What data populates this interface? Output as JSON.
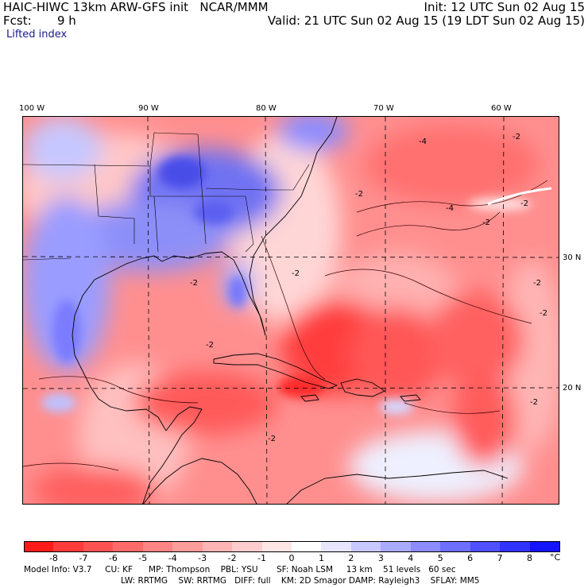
{
  "header": {
    "title_left": "HAIC-HIWC 13km ARW-GFS init   NCAR/MMM",
    "fcst_label": "Fcst:",
    "fcst_value": "9 h",
    "init": "Init: 12 UTC Sun 02 Aug 15",
    "valid": "Valid: 21 UTC Sun 02 Aug 15 (19 LDT Sun 02 Aug 15)",
    "field": "Lifted index"
  },
  "map": {
    "lon_labels": [
      "100 W",
      "90 W",
      "80 W",
      "70 W",
      "60 W"
    ],
    "lat_labels": [
      "30 N",
      "20 N"
    ],
    "contour_labels": [
      "-4",
      "-2",
      "-2",
      "-4",
      "-2",
      "-2",
      "-2",
      "-2",
      "-2",
      "-2",
      "-2",
      "-2",
      "-2"
    ]
  },
  "legend": {
    "ticks": [
      "-8",
      "-7",
      "-6",
      "-5",
      "-4",
      "-3",
      "-2",
      "-1",
      "0",
      "1",
      "2",
      "3",
      "4",
      "5",
      "6",
      "7",
      "8"
    ],
    "unit": "°C",
    "colors": [
      "#ff1a1a",
      "#ff3b3b",
      "#ff5353",
      "#ff6b6b",
      "#ff8484",
      "#ff9c9c",
      "#ffb5b5",
      "#ffcdcd",
      "#ffe6e6",
      "#ffffff",
      "#e6e6ff",
      "#c8c8ff",
      "#aaaaff",
      "#8c8cff",
      "#6e6eff",
      "#5050ff",
      "#3232ff",
      "#1414ff"
    ]
  },
  "info": {
    "line1": "Model Info: V3.7     CU: KF      MP: Thompson    PBL: YSU       SF: Noah LSM     13 km    51 levels   60 sec",
    "line2": "LW: RRTMG    SW: RRTMG   DIFF: full    KM: 2D Smagor DAMP: Rayleigh3    SFLAY: MM5"
  }
}
